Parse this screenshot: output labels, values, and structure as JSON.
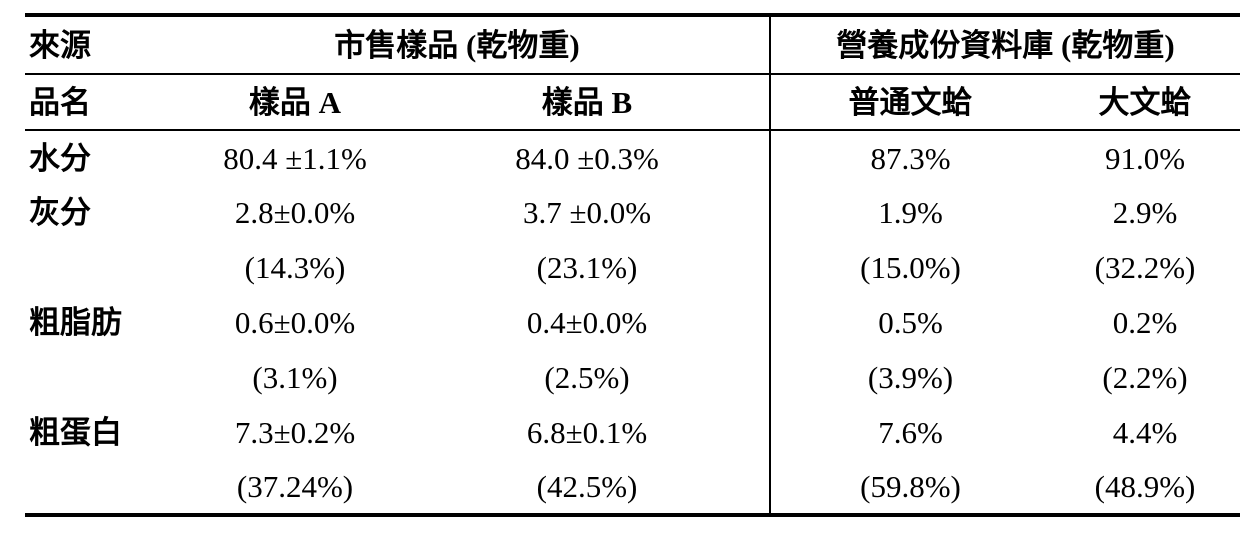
{
  "page": {
    "background": "#ffffff",
    "text_color": "#000000",
    "divider_color": "#000000"
  },
  "table": {
    "header_row_1": {
      "source_label": "來源",
      "market_group_label": "市售樣品 (乾物重)",
      "database_group_label": "營養成份資料庫 (乾物重)"
    },
    "header_row_2": {
      "name_label": "品名",
      "sample_a": "樣品 A",
      "sample_b": "樣品 B",
      "common_clam": "普通文蛤",
      "big_clam": "大文蛤"
    },
    "rows": [
      {
        "label": "水分",
        "values": [
          "80.4 ±1.1%",
          "84.0 ±0.3%",
          "87.3%",
          "91.0%"
        ]
      },
      {
        "label": "灰分",
        "values": [
          "2.8±0.0%",
          "3.7 ±0.0%",
          "1.9%",
          "2.9%"
        ]
      },
      {
        "label": "",
        "values": [
          "(14.3%)",
          "(23.1%)",
          "(15.0%)",
          "(32.2%)"
        ]
      },
      {
        "label": "粗脂肪",
        "values": [
          "0.6±0.0%",
          "0.4±0.0%",
          "0.5%",
          "0.2%"
        ]
      },
      {
        "label": "",
        "values": [
          "(3.1%)",
          "(2.5%)",
          "(3.9%)",
          "(2.2%)"
        ]
      },
      {
        "label": "粗蛋白",
        "values": [
          "7.3±0.2%",
          "6.8±0.1%",
          "7.6%",
          "4.4%"
        ]
      },
      {
        "label": "",
        "values": [
          "(37.24%)",
          "(42.5%)",
          "(59.8%)",
          "(48.9%)"
        ]
      }
    ]
  }
}
